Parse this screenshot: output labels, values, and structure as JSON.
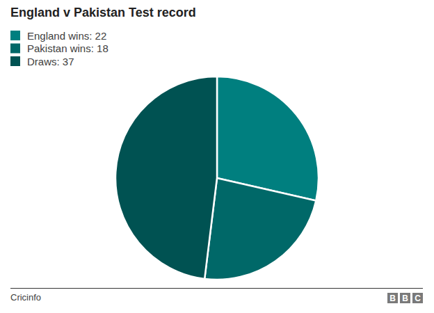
{
  "chart_data": {
    "type": "pie",
    "title": "England v Pakistan Test record",
    "categories": [
      "England wins: 22",
      "Pakistan wins: 18",
      "Draws: 37"
    ],
    "values": [
      22,
      18,
      37
    ],
    "colors": [
      "#007f7f",
      "#006868",
      "#005252"
    ],
    "legend": "top-left",
    "source": "Cricinfo",
    "logo": "BBC"
  }
}
